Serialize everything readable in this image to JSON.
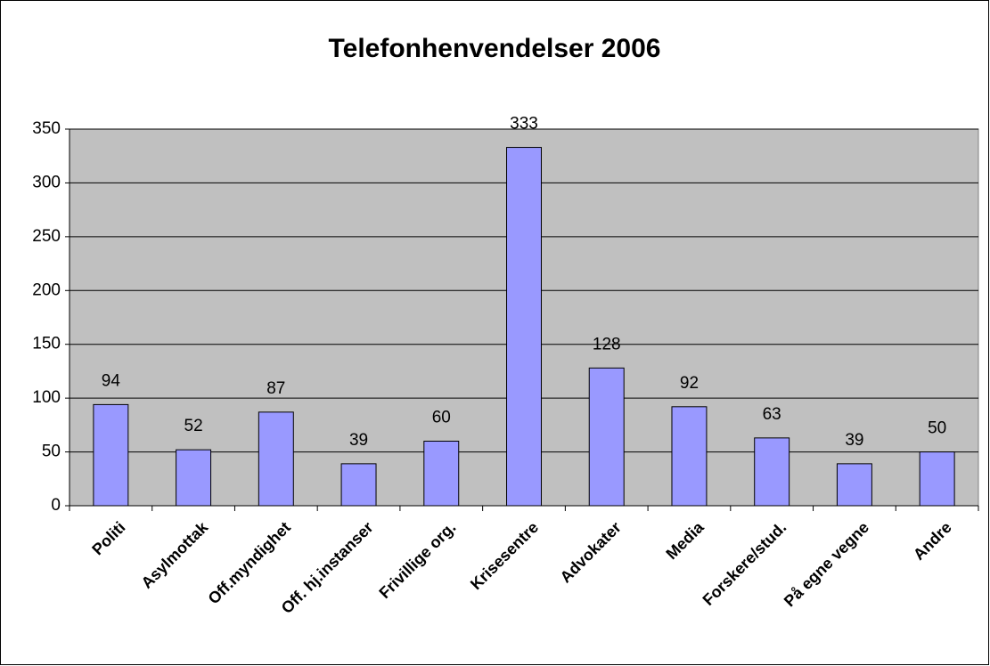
{
  "chart_data": {
    "type": "bar",
    "title": "Telefonhenvendelser 2006",
    "categories": [
      "Politi",
      "Asylmottak",
      "Off.myndighet",
      "Off. hj.instanser",
      "Frivillige org.",
      "Krisesentre",
      "Advokater",
      "Media",
      "Forskere/stud.",
      "På egne vegne",
      "Andre"
    ],
    "values": [
      94,
      52,
      87,
      39,
      60,
      333,
      128,
      92,
      63,
      39,
      50
    ],
    "color": "#9999ff",
    "ylim": [
      0,
      350
    ],
    "yticks": [
      0,
      50,
      100,
      150,
      200,
      250,
      300,
      350
    ],
    "grid": true
  }
}
